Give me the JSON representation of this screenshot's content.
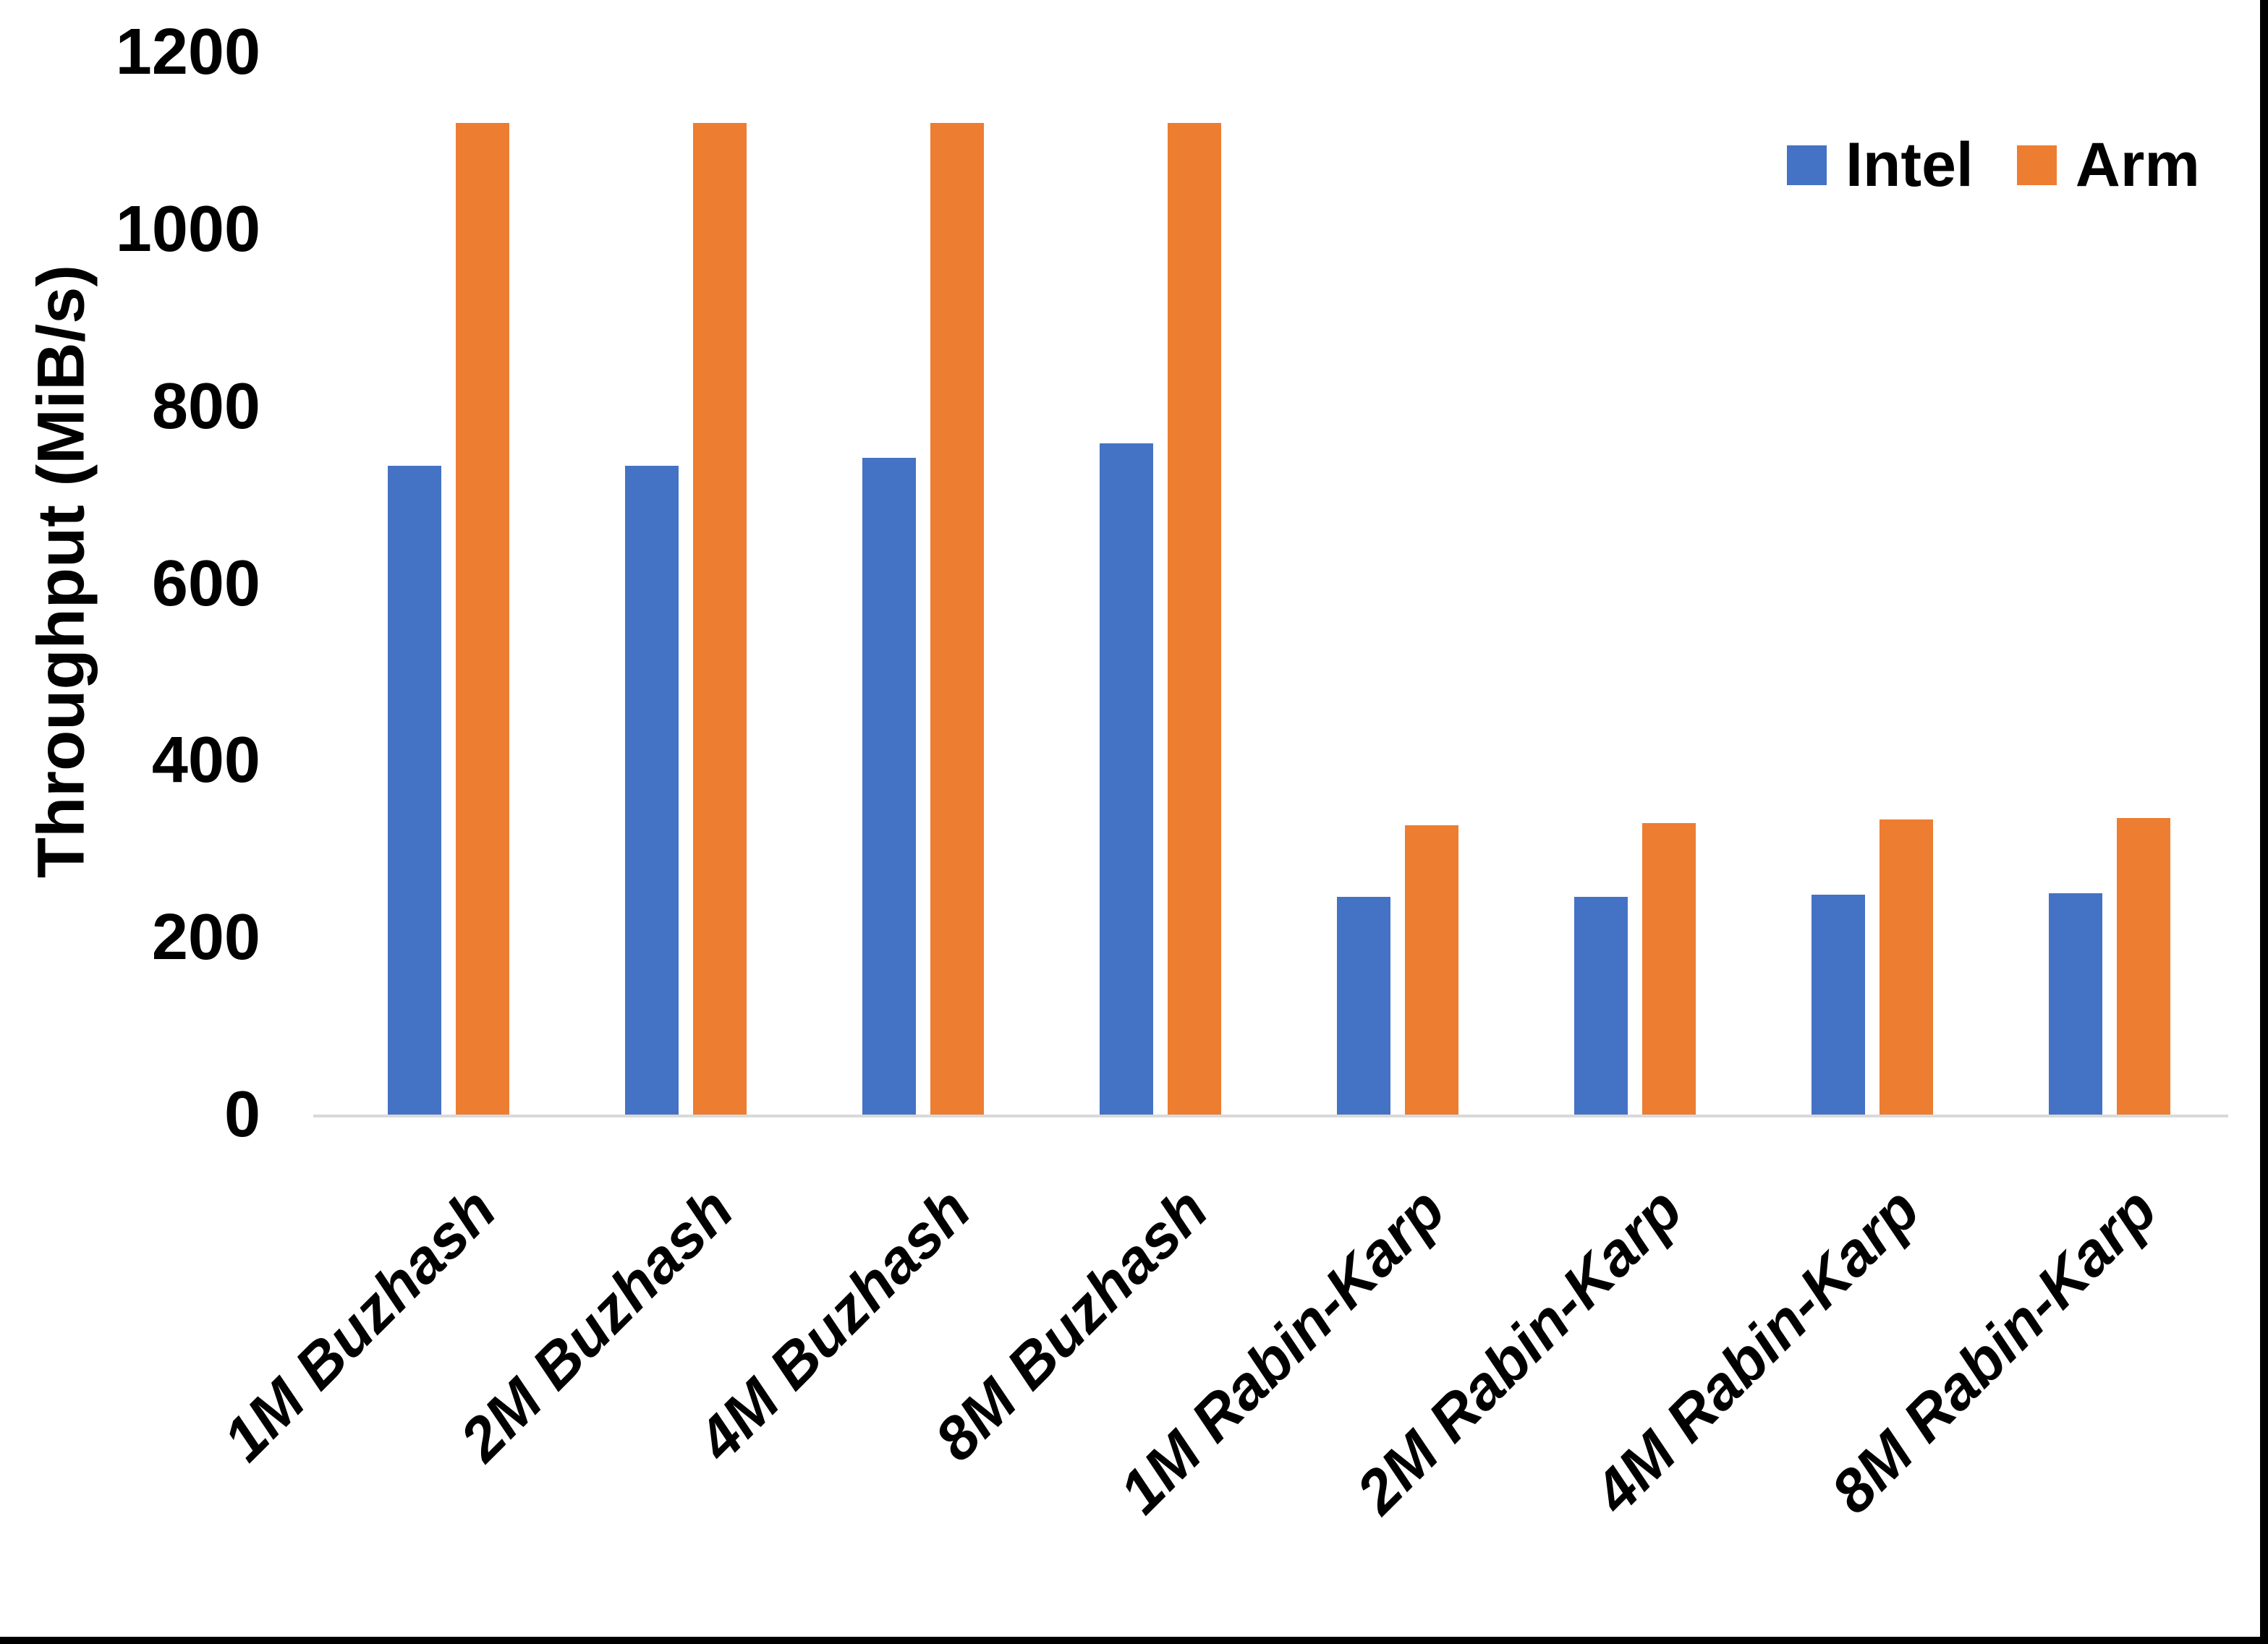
{
  "chart_data": {
    "type": "bar",
    "title": "",
    "xlabel": "",
    "ylabel": "Throughput (MiB/s)",
    "ylim": [
      0,
      1200
    ],
    "yticks": [
      0,
      200,
      400,
      600,
      800,
      1000,
      1200
    ],
    "grid": false,
    "legend_position": "top-right",
    "categories": [
      "1M Buzhash",
      "2M Buzhash",
      "4M Buzhash",
      "8M Buzhash",
      "1M Rabin-Karp",
      "2M Rabin-Karp",
      "4M Rabin-Karp",
      "8M Rabin-Karp"
    ],
    "series": [
      {
        "name": "Intel",
        "color": "#4472C4",
        "values": [
          733,
          733,
          742,
          758,
          246,
          246,
          248,
          250
        ]
      },
      {
        "name": "Arm",
        "color": "#ED7D31",
        "values": [
          1120,
          1120,
          1120,
          1120,
          327,
          329,
          333,
          335
        ]
      }
    ]
  },
  "colors": {
    "background": "#FFFFFF",
    "axis_line": "#D9D9D9",
    "text": "#000000",
    "border_bars": "#000000"
  }
}
